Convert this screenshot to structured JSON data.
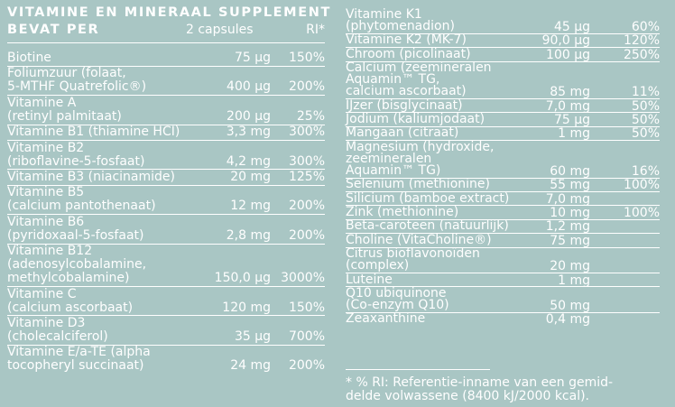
{
  "header": {
    "title": "VITAMINE EN MINERAAL SUPPLEMENT",
    "subtitle": "BEVAT PER",
    "serving": "2 capsules",
    "ri_label": "RI*"
  },
  "left_column": [
    {
      "name": "Biotine",
      "amount": "75 µg",
      "ri": "150%"
    },
    {
      "name": "Foliumzuur (folaat,\n5-MTHF Quatrefolic®)",
      "amount": "400 µg",
      "ri": "200%"
    },
    {
      "name": "Vitamine A\n(retinyl palmitaat)",
      "amount": "200 µg",
      "ri": "25%"
    },
    {
      "name": "Vitamine B1 (thiamine HCI)",
      "amount": "3,3 mg",
      "ri": "300%"
    },
    {
      "name": "Vitamine B2\n(riboflavine-5-fosfaat)",
      "amount": "4,2 mg",
      "ri": "300%"
    },
    {
      "name": "Vitamine B3 (niacinamide)",
      "amount": "20 mg",
      "ri": "125%"
    },
    {
      "name": "Vitamine B5\n(calcium pantothenaat)",
      "amount": "12 mg",
      "ri": "200%"
    },
    {
      "name": "Vitamine B6\n(pyridoxaal-5-fosfaat)",
      "amount": "2,8 mg",
      "ri": "200%"
    },
    {
      "name": "Vitamine B12\n(adenosylcobalamine,\nmethylcobalamine)",
      "amount": "150,0 µg",
      "ri": "3000%"
    },
    {
      "name": "Vitamine C\n(calcium ascorbaat)",
      "amount": "120 mg",
      "ri": "150%"
    },
    {
      "name": "Vitamine D3\n(cholecalciferol)",
      "amount": "35 µg",
      "ri": "700%"
    },
    {
      "name": "Vitamine E/a-TE (alpha\ntocopheryl succinaat)",
      "amount": "24 mg",
      "ri": "200%"
    }
  ],
  "right_column": [
    {
      "name": "Vitamine K1\n(phytomenadion)",
      "amount": "45 µg",
      "ri": "60%"
    },
    {
      "name": "Vitamine K2 (MK-7)",
      "amount": "90,0 µg",
      "ri": "120%"
    },
    {
      "name": "Chroom (picolinaat)",
      "amount": "100 µg",
      "ri": "250%"
    },
    {
      "name": "Calcium (zeemineralen\nAquamin™ TG,\ncalcium ascorbaat)",
      "amount": "85 mg",
      "ri": "11%"
    },
    {
      "name": "IJzer (bisglycinaat)",
      "amount": "7,0 mg",
      "ri": "50%"
    },
    {
      "name": "Jodium (kaliumjodaat)",
      "amount": "75 µg",
      "ri": "50%"
    },
    {
      "name": "Mangaan (citraat)",
      "amount": "1 mg",
      "ri": "50%"
    },
    {
      "name": "Magnesium (hydroxide,\nzeemineralen\nAquamin™ TG)",
      "amount": "60 mg",
      "ri": "16%"
    },
    {
      "name": "Selenium (methionine)",
      "amount": "55 mg",
      "ri": "100%"
    },
    {
      "name": "Silicium (bamboe extract)",
      "amount": "7,0 mg",
      "ri": ""
    },
    {
      "name": "Zink (methionine)",
      "amount": "10 mg",
      "ri": "100%"
    },
    {
      "name": "Beta-caroteen (natuurlijk)",
      "amount": "1,2 mg",
      "ri": ""
    },
    {
      "name": "Choline (VitaCholine®)",
      "amount": "75 mg",
      "ri": ""
    },
    {
      "name": "Citrus bioflavonoïden\n(complex)",
      "amount": "20 mg",
      "ri": ""
    },
    {
      "name": "Luteine",
      "amount": "1 mg",
      "ri": ""
    },
    {
      "name": "Q10 ubiquinone\n(Co-enzym Q10)",
      "amount": "50 mg",
      "ri": ""
    },
    {
      "name": "Zeaxanthine",
      "amount": "0,4 mg",
      "ri": ""
    }
  ],
  "footnote": "* % RI: Referentie-inname van een gemid-\ndelde volwassene (8400 kJ/2000 kcal).",
  "colors": {
    "background": "#a9c6c4",
    "text": "#ffffff"
  }
}
